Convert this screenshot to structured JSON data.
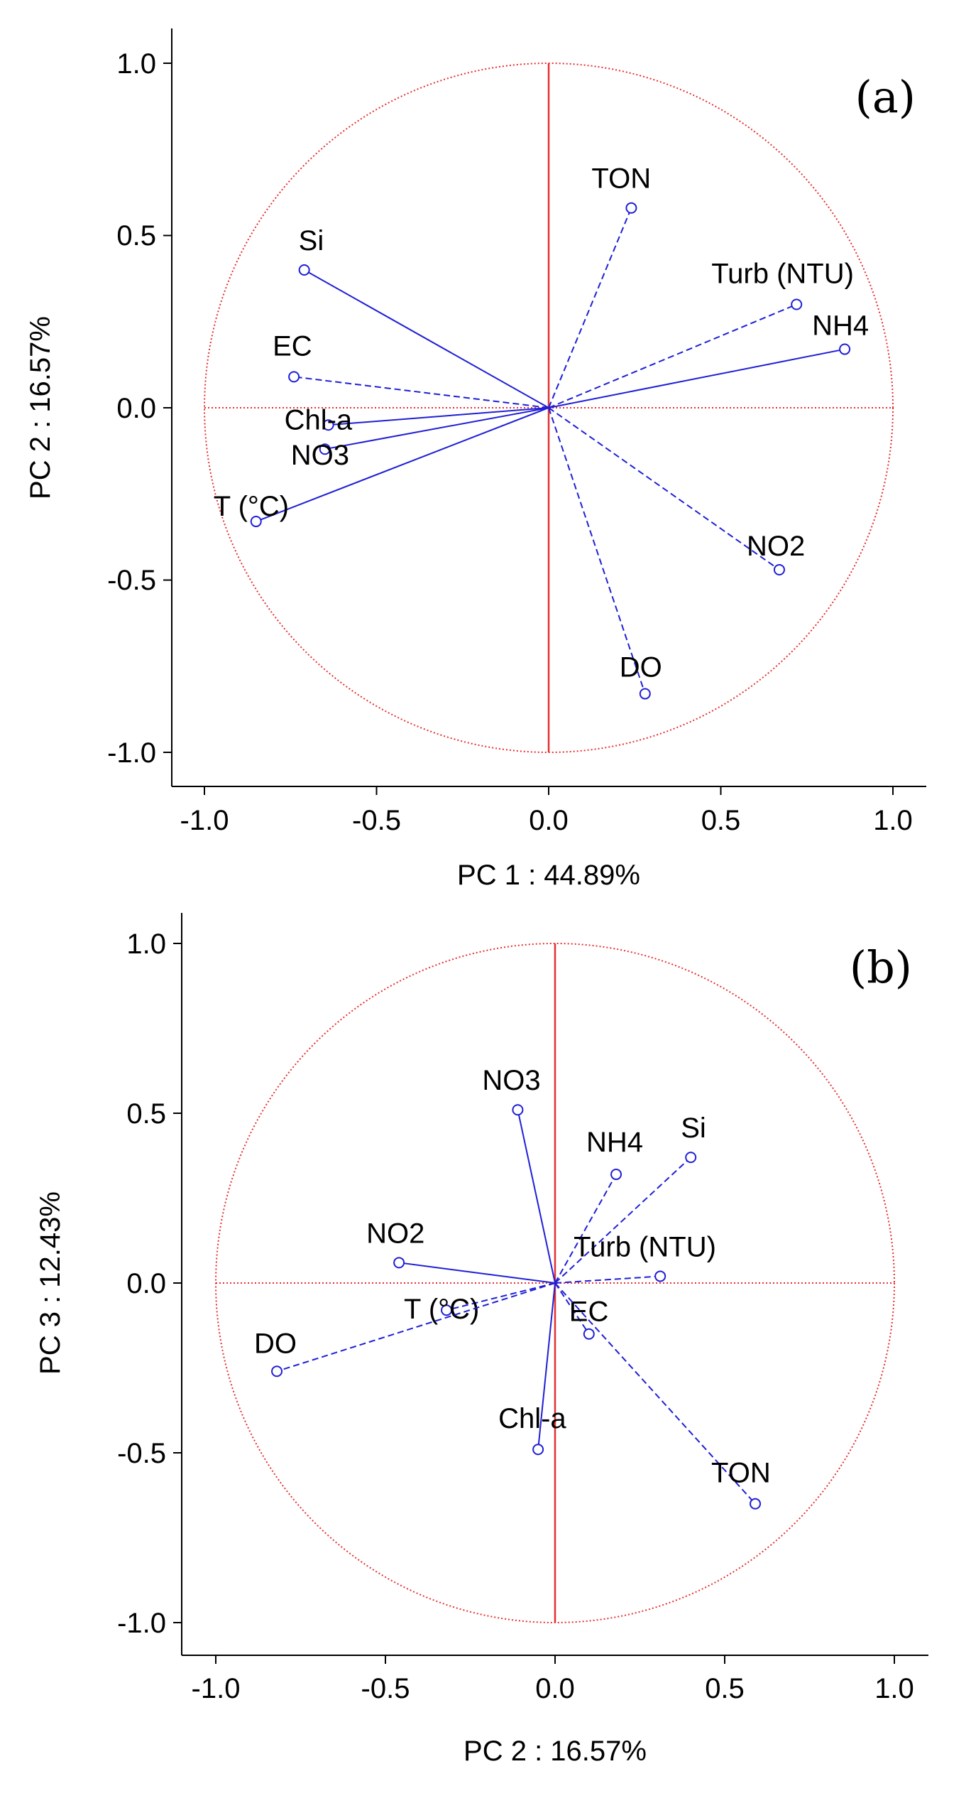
{
  "chart_data": [
    {
      "type": "scatter",
      "subtype": "pca-loading-circle",
      "panel": "(a)",
      "xlabel": "PC 1 : 44.89%",
      "ylabel": "PC 2 : 16.57%",
      "xlim": [
        -1.1,
        1.1
      ],
      "ylim": [
        -1.1,
        1.1
      ],
      "xticks": [
        "-1.0",
        "-0.5",
        "0.0",
        "0.5",
        "1.0"
      ],
      "yticks": [
        "1.0",
        "0.5",
        "0.0",
        "-0.5",
        "-1.0"
      ],
      "points": [
        {
          "name": "Si",
          "x": -0.71,
          "y": 0.4,
          "dashed": false
        },
        {
          "name": "EC",
          "x": -0.74,
          "y": 0.09,
          "dashed": true
        },
        {
          "name": "Chl-a",
          "x": -0.64,
          "y": -0.05,
          "dashed": false
        },
        {
          "name": "NO3",
          "x": -0.65,
          "y": -0.12,
          "dashed": false
        },
        {
          "name": "T (°C)",
          "x": -0.85,
          "y": -0.33,
          "dashed": false
        },
        {
          "name": "TON",
          "x": 0.24,
          "y": 0.58,
          "dashed": true
        },
        {
          "name": "Turb (NTU)",
          "x": 0.72,
          "y": 0.3,
          "dashed": true
        },
        {
          "name": "NH4",
          "x": 0.86,
          "y": 0.17,
          "dashed": false
        },
        {
          "name": "NO2",
          "x": 0.67,
          "y": -0.47,
          "dashed": true
        },
        {
          "name": "DO",
          "x": 0.28,
          "y": -0.83,
          "dashed": true
        }
      ]
    },
    {
      "type": "scatter",
      "subtype": "pca-loading-circle",
      "panel": "(b)",
      "xlabel": "PC 2 : 16.57%",
      "ylabel": "PC 3 : 12.43%",
      "xlim": [
        -1.1,
        1.1
      ],
      "ylim": [
        -1.1,
        1.1
      ],
      "xticks": [
        "-1.0",
        "-0.5",
        "0.0",
        "0.5",
        "1.0"
      ],
      "yticks": [
        "1.0",
        "0.5",
        "0.0",
        "-0.5",
        "-1.0"
      ],
      "points": [
        {
          "name": "NO3",
          "x": -0.11,
          "y": 0.51,
          "dashed": false
        },
        {
          "name": "NH4",
          "x": 0.18,
          "y": 0.32,
          "dashed": true
        },
        {
          "name": "Si",
          "x": 0.4,
          "y": 0.37,
          "dashed": true
        },
        {
          "name": "NO2",
          "x": -0.46,
          "y": 0.06,
          "dashed": false
        },
        {
          "name": "Turb (NTU)",
          "x": 0.31,
          "y": 0.02,
          "dashed": true
        },
        {
          "name": "T (°C)",
          "x": -0.32,
          "y": -0.08,
          "dashed": true
        },
        {
          "name": "EC",
          "x": 0.1,
          "y": -0.15,
          "dashed": true
        },
        {
          "name": "DO",
          "x": -0.82,
          "y": -0.26,
          "dashed": true
        },
        {
          "name": "Chl-a",
          "x": -0.05,
          "y": -0.49,
          "dashed": false
        },
        {
          "name": "TON",
          "x": 0.59,
          "y": -0.65,
          "dashed": true
        }
      ]
    }
  ]
}
